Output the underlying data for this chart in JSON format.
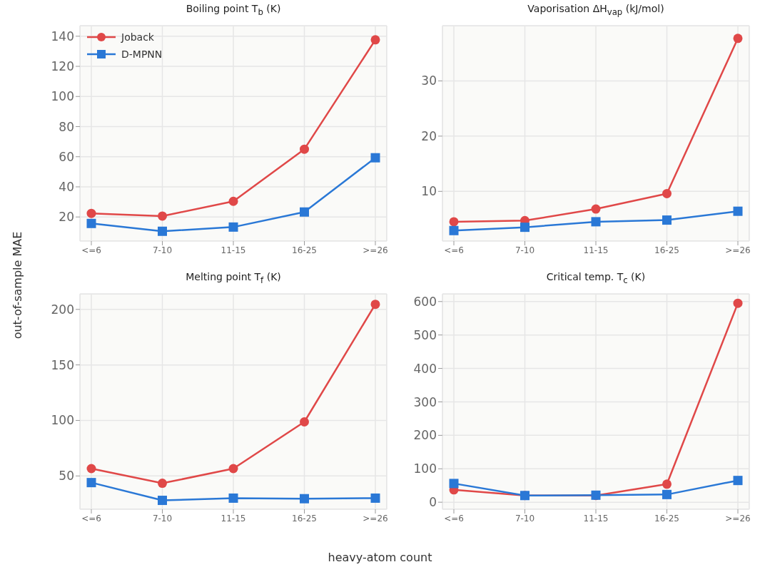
{
  "chart_data": [
    {
      "type": "line",
      "title": "Boiling point T$_{b}$ (K)",
      "xlabel": "heavy-atom count",
      "ylabel": "out-of-sample MAE",
      "categories": [
        "<=6",
        "7-10",
        "11-15",
        "16-25",
        ">=26"
      ],
      "ylim": [
        4,
        147
      ],
      "yticks": [
        20,
        40,
        60,
        80,
        100,
        120,
        140
      ],
      "grid": true,
      "legend": "top left",
      "series": [
        {
          "name": "Joback",
          "color": "#e04848",
          "marker": "circle",
          "values": [
            22.4,
            20.6,
            30.4,
            65,
            137.6
          ]
        },
        {
          "name": "D-MPNN",
          "color": "#2a78d6",
          "marker": "square",
          "values": [
            15.7,
            10.5,
            13.3,
            23.3,
            59.3
          ]
        }
      ]
    },
    {
      "type": "line",
      "title": "Vaporisation ΔH$_{vap}$ (kJ/mol)",
      "categories": [
        "<=6",
        "7-10",
        "11-15",
        "16-25",
        ">=26"
      ],
      "ylim": [
        1,
        40
      ],
      "yticks": [
        10,
        20,
        30
      ],
      "grid": true,
      "series": [
        {
          "color": "#e04848",
          "marker": "circle",
          "values": [
            4.5,
            4.7,
            6.8,
            9.6,
            37.7
          ]
        },
        {
          "color": "#2a78d6",
          "marker": "square",
          "values": [
            2.9,
            3.5,
            4.5,
            4.8,
            6.4
          ]
        }
      ]
    },
    {
      "type": "line",
      "title": "Melting point T$_{f}$ (K)",
      "categories": [
        "<=6",
        "7-10",
        "11-15",
        "16-25",
        ">=26"
      ],
      "ylim": [
        20,
        214
      ],
      "yticks": [
        50,
        100,
        150,
        200
      ],
      "grid": true,
      "series": [
        {
          "color": "#e04848",
          "marker": "circle",
          "values": [
            56.6,
            43.4,
            56.6,
            98.7,
            204.6
          ]
        },
        {
          "color": "#2a78d6",
          "marker": "square",
          "values": [
            44,
            28,
            30,
            29.5,
            30
          ]
        }
      ]
    },
    {
      "type": "line",
      "title": "Critical temp. T$_{c}$ (K)",
      "categories": [
        "<=6",
        "7-10",
        "11-15",
        "16-25",
        ">=26"
      ],
      "ylim": [
        -21,
        623
      ],
      "yticks": [
        0,
        100,
        200,
        300,
        400,
        500,
        600
      ],
      "grid": true,
      "series": [
        {
          "color": "#e04848",
          "marker": "circle",
          "values": [
            37,
            20,
            20,
            54,
            595
          ]
        },
        {
          "color": "#2a78d6",
          "marker": "square",
          "values": [
            56,
            20,
            21,
            23,
            65
          ]
        }
      ]
    }
  ]
}
